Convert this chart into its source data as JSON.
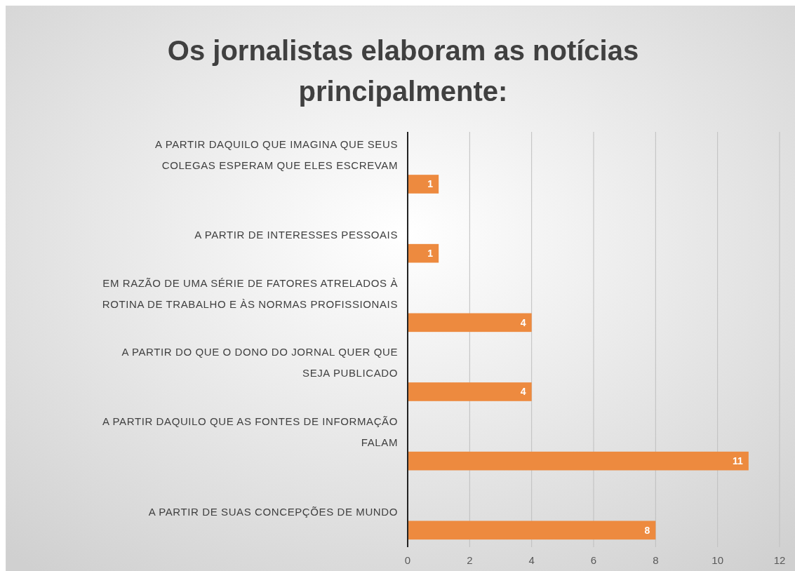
{
  "chart_data": {
    "type": "bar",
    "orientation": "horizontal",
    "title": "Os jornalistas elaboram as notícias principalmente:",
    "categories": [
      "A PARTIR DAQUILO QUE IMAGINA QUE SEUS COLEGAS ESPERAM QUE ELES ESCREVAM",
      "A PARTIR DE INTERESSES PESSOAIS",
      "EM RAZÃO DE UMA SÉRIE DE FATORES ATRELADOS À ROTINA DE TRABALHO E ÀS NORMAS PROFISSIONAIS",
      "A PARTIR DO QUE O DONO DO JORNAL QUER QUE SEJA PUBLICADO",
      "A PARTIR DAQUILO QUE AS FONTES DE INFORMAÇÃO FALAM",
      "A PARTIR DE SUAS CONCEPÇÕES DE MUNDO"
    ],
    "values": [
      1,
      1,
      4,
      4,
      11,
      8
    ],
    "color": "#ed8a3f",
    "xlim": [
      0,
      12
    ],
    "xticks": [
      0,
      2,
      4,
      6,
      8,
      10,
      12
    ],
    "grid": "x",
    "data_labels": true
  }
}
